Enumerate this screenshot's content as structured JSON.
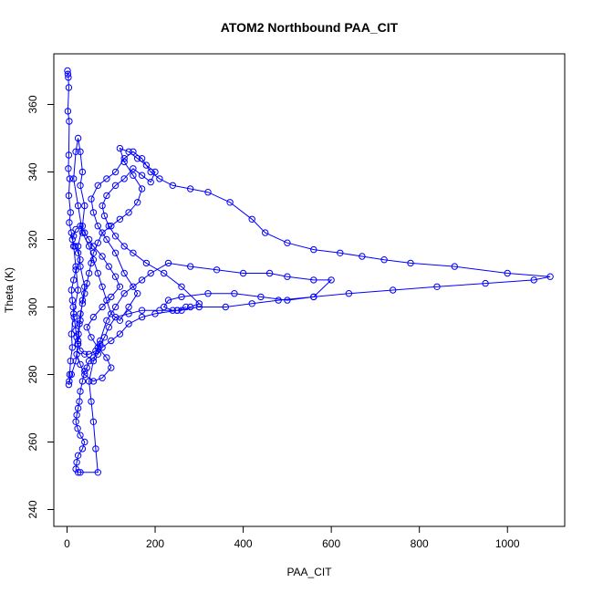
{
  "chart_data": {
    "type": "scatter",
    "title": "ATOM2 Northbound PAA_CIT",
    "xlabel": "PAA_CIT",
    "ylabel": "Theta (K)",
    "xlim": [
      -30,
      1130
    ],
    "ylim": [
      235,
      375
    ],
    "xticks": [
      0,
      200,
      400,
      600,
      800,
      1000
    ],
    "yticks": [
      240,
      260,
      280,
      300,
      320,
      340,
      360
    ],
    "grid": false,
    "legend": "none",
    "color": "#0000ff",
    "series": [
      {
        "values": [
          [
            1,
            370
          ],
          [
            2,
            369
          ],
          [
            3,
            368
          ],
          [
            4,
            365
          ],
          [
            2,
            358
          ],
          [
            5,
            355
          ],
          [
            4,
            345
          ],
          [
            3,
            341
          ],
          [
            6,
            338
          ],
          [
            4,
            333
          ],
          [
            8,
            328
          ],
          [
            5,
            325
          ],
          [
            10,
            322
          ],
          [
            15,
            318
          ],
          [
            20,
            312
          ],
          [
            25,
            305
          ],
          [
            15,
            298
          ],
          [
            10,
            292
          ],
          [
            12,
            288
          ],
          [
            8,
            284
          ],
          [
            6,
            280
          ],
          [
            5,
            278
          ],
          [
            4,
            277
          ],
          [
            10,
            280
          ],
          [
            20,
            284
          ],
          [
            25,
            290
          ],
          [
            30,
            296
          ],
          [
            35,
            302
          ],
          [
            40,
            306
          ],
          [
            30,
            312
          ],
          [
            25,
            318
          ],
          [
            35,
            324
          ],
          [
            40,
            330
          ],
          [
            30,
            336
          ],
          [
            35,
            340
          ],
          [
            30,
            346
          ],
          [
            25,
            350
          ],
          [
            20,
            346
          ],
          [
            15,
            338
          ],
          [
            25,
            330
          ],
          [
            35,
            322
          ],
          [
            50,
            318
          ],
          [
            60,
            314
          ],
          [
            70,
            310
          ],
          [
            80,
            306
          ],
          [
            90,
            302
          ],
          [
            100,
            298
          ],
          [
            120,
            296
          ],
          [
            140,
            300
          ],
          [
            160,
            304
          ],
          [
            130,
            310
          ],
          [
            110,
            316
          ],
          [
            90,
            320
          ],
          [
            70,
            324
          ],
          [
            60,
            328
          ],
          [
            55,
            332
          ],
          [
            70,
            336
          ],
          [
            90,
            338
          ],
          [
            110,
            340
          ],
          [
            130,
            344
          ],
          [
            150,
            346
          ],
          [
            170,
            344
          ],
          [
            190,
            340
          ],
          [
            210,
            338
          ],
          [
            240,
            336
          ],
          [
            280,
            335
          ],
          [
            320,
            334
          ],
          [
            370,
            331
          ],
          [
            420,
            326
          ],
          [
            450,
            322
          ],
          [
            500,
            319
          ],
          [
            560,
            317
          ],
          [
            620,
            316
          ],
          [
            670,
            315
          ],
          [
            720,
            314
          ],
          [
            780,
            313
          ],
          [
            880,
            312
          ],
          [
            1000,
            310
          ],
          [
            1097,
            309
          ],
          [
            1060,
            308
          ],
          [
            950,
            307
          ],
          [
            840,
            306
          ],
          [
            740,
            305
          ],
          [
            640,
            304
          ],
          [
            560,
            303
          ],
          [
            480,
            302
          ],
          [
            420,
            301
          ],
          [
            360,
            300
          ],
          [
            300,
            300
          ],
          [
            250,
            299
          ],
          [
            200,
            298
          ],
          [
            170,
            297
          ],
          [
            140,
            295
          ],
          [
            120,
            292
          ],
          [
            100,
            290
          ],
          [
            80,
            288
          ],
          [
            70,
            286
          ],
          [
            60,
            285
          ],
          [
            50,
            284
          ],
          [
            45,
            282
          ],
          [
            40,
            281
          ],
          [
            35,
            278
          ],
          [
            30,
            275
          ],
          [
            28,
            272
          ],
          [
            25,
            270
          ],
          [
            22,
            268
          ],
          [
            20,
            266
          ],
          [
            24,
            264
          ],
          [
            30,
            262
          ],
          [
            40,
            260
          ],
          [
            35,
            258
          ],
          [
            25,
            256
          ],
          [
            22,
            254
          ],
          [
            20,
            252
          ],
          [
            25,
            251
          ],
          [
            30,
            251
          ],
          [
            70,
            251
          ],
          [
            65,
            258
          ],
          [
            60,
            266
          ],
          [
            55,
            272
          ],
          [
            50,
            278
          ],
          [
            60,
            284
          ],
          [
            75,
            290
          ],
          [
            90,
            296
          ],
          [
            110,
            300
          ],
          [
            130,
            304
          ],
          [
            150,
            306
          ],
          [
            170,
            308
          ],
          [
            190,
            310
          ],
          [
            230,
            313
          ],
          [
            280,
            312
          ],
          [
            340,
            311
          ],
          [
            400,
            310
          ],
          [
            460,
            310
          ],
          [
            500,
            309
          ],
          [
            560,
            308
          ],
          [
            600,
            308
          ],
          [
            560,
            303
          ],
          [
            500,
            302
          ],
          [
            440,
            303
          ],
          [
            380,
            304
          ],
          [
            320,
            304
          ],
          [
            260,
            303
          ],
          [
            230,
            302
          ],
          [
            220,
            300
          ],
          [
            240,
            299
          ],
          [
            260,
            299
          ],
          [
            280,
            300
          ],
          [
            300,
            301
          ],
          [
            260,
            306
          ],
          [
            220,
            310
          ],
          [
            180,
            313
          ],
          [
            150,
            316
          ],
          [
            130,
            318
          ],
          [
            110,
            321
          ],
          [
            95,
            324
          ],
          [
            85,
            327
          ],
          [
            80,
            330
          ],
          [
            90,
            333
          ],
          [
            110,
            336
          ],
          [
            130,
            338
          ],
          [
            150,
            341
          ],
          [
            170,
            339
          ],
          [
            190,
            337
          ],
          [
            200,
            340
          ],
          [
            180,
            342
          ],
          [
            160,
            344
          ],
          [
            140,
            346
          ],
          [
            120,
            347
          ],
          [
            130,
            343
          ],
          [
            150,
            339
          ],
          [
            170,
            335
          ],
          [
            160,
            331
          ],
          [
            140,
            328
          ],
          [
            120,
            326
          ],
          [
            100,
            324
          ],
          [
            80,
            322
          ],
          [
            70,
            319
          ],
          [
            60,
            316
          ],
          [
            55,
            313
          ],
          [
            50,
            310
          ],
          [
            45,
            307
          ],
          [
            40,
            304
          ],
          [
            35,
            301
          ],
          [
            30,
            298
          ],
          [
            28,
            295
          ],
          [
            26,
            292
          ],
          [
            24,
            289
          ],
          [
            22,
            286
          ],
          [
            30,
            283
          ],
          [
            40,
            280
          ],
          [
            60,
            278
          ],
          [
            80,
            279
          ],
          [
            100,
            282
          ],
          [
            90,
            285
          ],
          [
            70,
            288
          ],
          [
            55,
            291
          ],
          [
            45,
            294
          ],
          [
            60,
            297
          ],
          [
            80,
            300
          ],
          [
            100,
            303
          ],
          [
            120,
            306
          ],
          [
            110,
            309
          ],
          [
            95,
            312
          ],
          [
            80,
            315
          ],
          [
            60,
            318
          ],
          [
            50,
            320
          ],
          [
            40,
            322
          ],
          [
            30,
            324
          ],
          [
            20,
            323
          ],
          [
            15,
            321
          ],
          [
            12,
            320
          ],
          [
            18,
            318
          ],
          [
            25,
            316
          ],
          [
            30,
            314
          ],
          [
            20,
            311
          ],
          [
            15,
            308
          ],
          [
            10,
            305
          ],
          [
            12,
            302
          ],
          [
            14,
            300
          ],
          [
            16,
            297
          ],
          [
            18,
            295
          ],
          [
            20,
            293
          ],
          [
            22,
            291
          ],
          [
            25,
            289
          ],
          [
            30,
            287
          ],
          [
            40,
            286
          ],
          [
            50,
            286
          ],
          [
            65,
            287
          ],
          [
            75,
            289
          ],
          [
            85,
            291
          ],
          [
            95,
            294
          ],
          [
            110,
            297
          ],
          [
            140,
            298
          ],
          [
            170,
            299
          ],
          [
            210,
            299
          ],
          [
            250,
            299
          ],
          [
            270,
            300
          ]
        ]
      }
    ]
  }
}
